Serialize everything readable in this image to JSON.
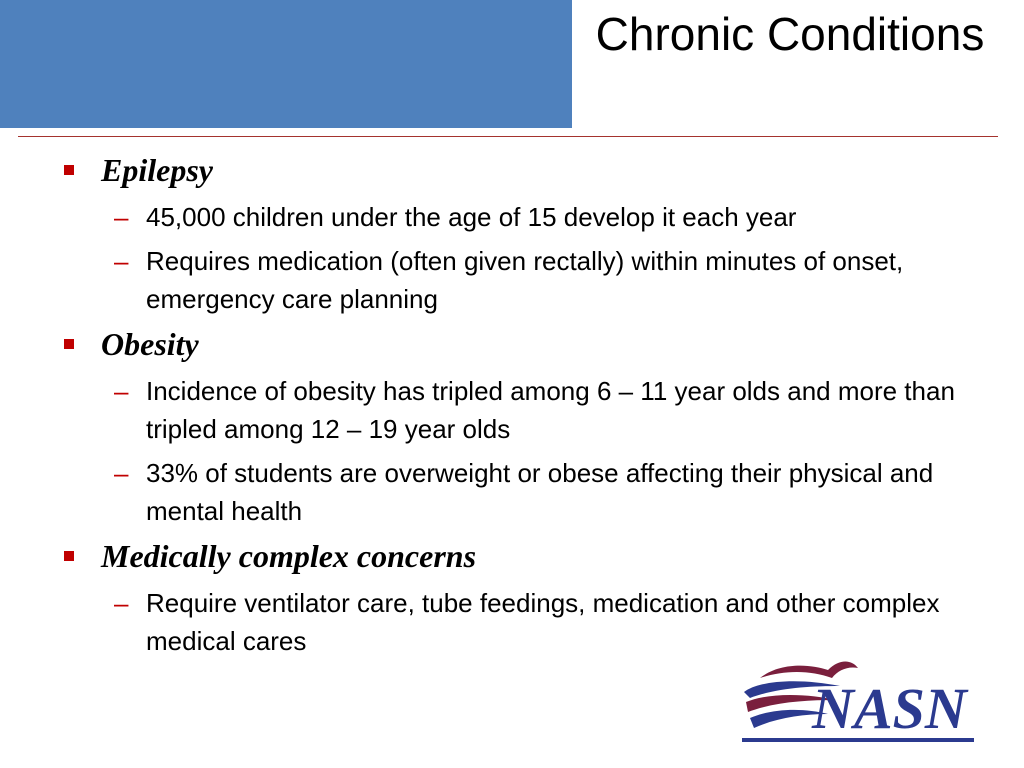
{
  "slide": {
    "title": "Chronic Conditions",
    "sections": [
      {
        "heading": "Epilepsy",
        "items": [
          "45,000 children under the age of 15 develop it each year",
          "Requires medication (often given rectally) within minutes of onset, emergency care planning"
        ]
      },
      {
        "heading": "Obesity",
        "items": [
          "Incidence of obesity has tripled among 6 – 11 year olds and more than tripled among 12 – 19 year olds",
          "33% of students are overweight or obese affecting their physical and mental health"
        ]
      },
      {
        "heading": "Medically complex concerns",
        "items": [
          "Require ventilator care, tube feedings, medication and other complex medical cares"
        ]
      }
    ],
    "bullet_symbol": "▪",
    "dash_symbol": "–"
  },
  "logo": {
    "text": "NASN",
    "icon": "nasn-logo"
  },
  "colors": {
    "header_block": "#4f81bd",
    "accent_red": "#c00000",
    "rule": "#a5332e",
    "logo_navy": "#2b3a8f",
    "logo_maroon": "#7a1f3d"
  }
}
